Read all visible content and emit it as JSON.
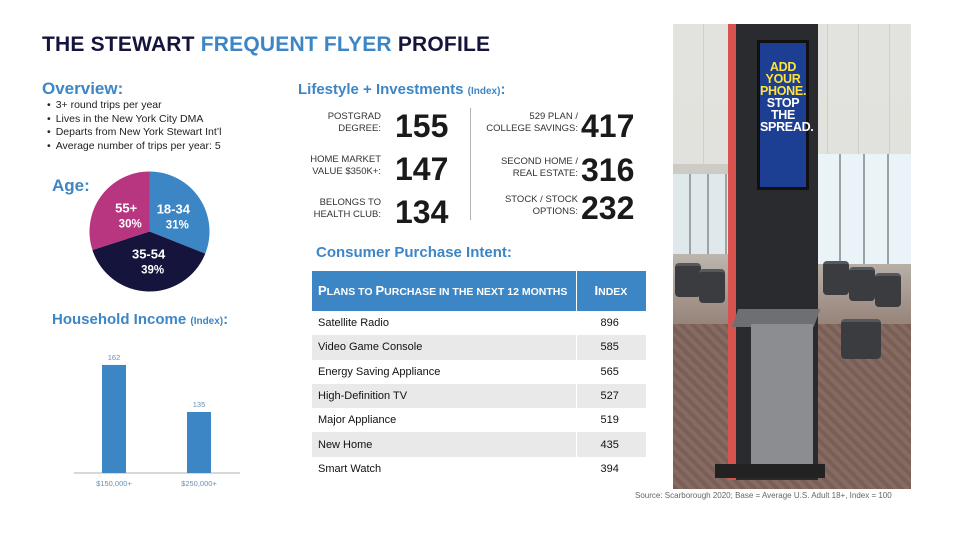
{
  "header": {
    "title_prefix": "THE STEWART ",
    "title_accent": "FREQUENT FLYER",
    "title_suffix": " PROFILE"
  },
  "overview": {
    "heading": "Overview:",
    "bullets": [
      "3+ round trips per year",
      "Lives in the New York City DMA",
      "Departs from New York Stewart Int’l",
      "Average number of trips per year: 5"
    ]
  },
  "age": {
    "heading": "Age:",
    "chart_data": {
      "type": "pie",
      "slices": [
        {
          "label": "18-34",
          "value": 31,
          "value_label": "31%",
          "color": "#3d86c6"
        },
        {
          "label": "35-54",
          "value": 39,
          "value_label": "39%",
          "color": "#14143c"
        },
        {
          "label": "55+",
          "value": 30,
          "value_label": "30%",
          "color": "#b8357f"
        }
      ]
    }
  },
  "household_income": {
    "heading": "Household Income ",
    "heading_small": "(Index)",
    "heading_colon": ":",
    "chart_data": {
      "type": "bar",
      "categories": [
        "$150,000+",
        "$250,000+"
      ],
      "values": [
        162,
        135
      ],
      "value_labels": [
        "162",
        "135"
      ],
      "ylim": [
        100,
        170
      ],
      "bar_color": "#3d86c6"
    }
  },
  "lifestyle": {
    "heading": "Lifestyle + Investments ",
    "heading_small": "(Index)",
    "heading_colon": ":",
    "stats": [
      {
        "label_line1": "POSTGRAD",
        "label_line2": "DEGREE:",
        "value": "155"
      },
      {
        "label_line1": "HOME MARKET",
        "label_line2": "VALUE $350K+:",
        "value": "147"
      },
      {
        "label_line1": "BELONGS TO",
        "label_line2": "HEALTH CLUB:",
        "value": "134"
      },
      {
        "label_line1": "529 PLAN /",
        "label_line2": "COLLEGE SAVINGS:",
        "value": "417"
      },
      {
        "label_line1": "SECOND HOME /",
        "label_line2": "REAL ESTATE:",
        "value": "316"
      },
      {
        "label_line1": "STOCK / STOCK",
        "label_line2": "OPTIONS:",
        "value": "232"
      }
    ]
  },
  "purchase_intent": {
    "heading": "Consumer Purchase Intent:",
    "col1_first": "P",
    "col1_rest": "LANS TO ",
    "col1_p2_first": "P",
    "col1_p2_rest": "URCHASE IN THE NEXT 12 MONTHS",
    "col2_first": "I",
    "col2_rest": "NDEX",
    "rows": [
      {
        "item": "Satellite Radio",
        "index": "896"
      },
      {
        "item": "Video Game Console",
        "index": "585"
      },
      {
        "item": "Energy Saving Appliance",
        "index": "565"
      },
      {
        "item": "High-Definition TV",
        "index": "527"
      },
      {
        "item": "Major Appliance",
        "index": "519"
      },
      {
        "item": "New Home",
        "index": "435"
      },
      {
        "item": "Smart Watch",
        "index": "394"
      }
    ]
  },
  "photo": {
    "screen_line1": "ADD",
    "screen_line2": "YOUR",
    "screen_line3": "PHONE.",
    "screen_line4": "STOP",
    "screen_line5": "THE",
    "screen_line6": "SPREAD."
  },
  "footer": {
    "source": "Source: Scarborough 2020; Base = Average U.S. Adult 18+, Index = 100"
  }
}
